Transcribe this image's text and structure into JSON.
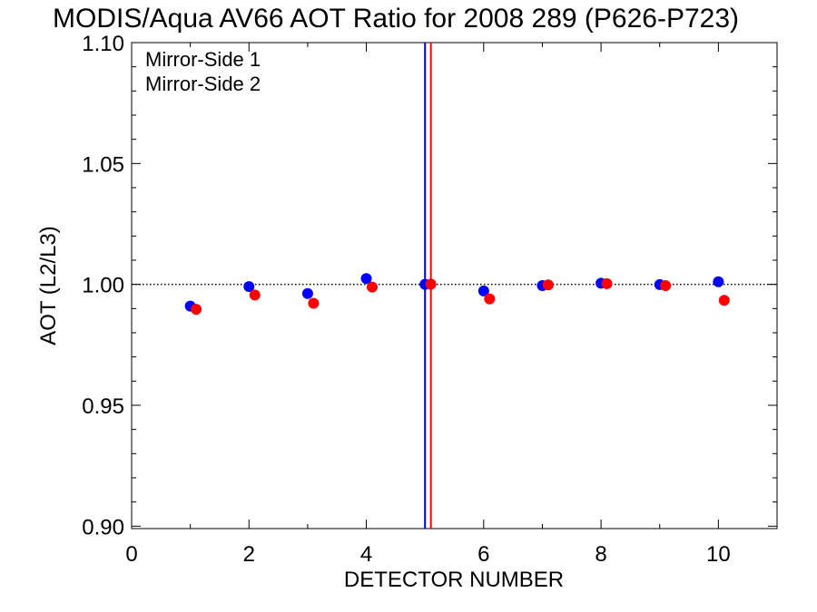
{
  "chart_data": {
    "type": "scatter",
    "title": "MODIS/Aqua AV66 AOT Ratio for 2008 289 (P626-P723)",
    "xlabel": "DETECTOR NUMBER",
    "ylabel": "AOT (L2/L3)",
    "xlim": [
      0,
      11
    ],
    "ylim": [
      0.899,
      1.1
    ],
    "x_ticks": [
      0,
      2,
      4,
      6,
      8,
      10
    ],
    "y_ticks": [
      0.9,
      0.95,
      1.0,
      1.05,
      1.1
    ],
    "x_tick_labels": [
      "0",
      "2",
      "4",
      "6",
      "8",
      "10"
    ],
    "y_tick_labels": [
      "0.90",
      "0.95",
      "1.00",
      "1.05",
      "1.10"
    ],
    "reference_line_y": 1.0,
    "vertical_lines": [
      {
        "x": 5.0,
        "color": "#0000ff"
      },
      {
        "x": 5.1,
        "color": "#ff0000"
      }
    ],
    "legend_position": "top-left",
    "series": [
      {
        "name": "Mirror-Side 1",
        "color": "#0000ff",
        "x": [
          1,
          2,
          3,
          4,
          5,
          6,
          7,
          8,
          9,
          10
        ],
        "y": [
          0.991,
          0.9991,
          0.9962,
          1.0024,
          1.0,
          0.9973,
          0.9995,
          1.0005,
          0.9999,
          1.0011
        ]
      },
      {
        "name": "Mirror-Side 2",
        "color": "#ff0000",
        "x": [
          1.1,
          2.1,
          3.1,
          4.1,
          5.1,
          6.1,
          7.1,
          8.1,
          9.1,
          10.1
        ],
        "y": [
          0.9897,
          0.9956,
          0.9922,
          0.9989,
          1.0001,
          0.994,
          0.9998,
          1.0003,
          0.9995,
          0.9934
        ]
      }
    ]
  }
}
